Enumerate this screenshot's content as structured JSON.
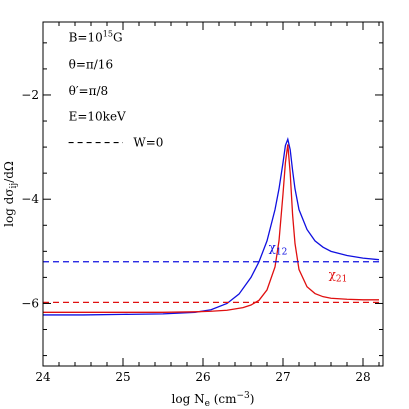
{
  "chart_data": {
    "type": "line",
    "title": "",
    "xlabel": "log N_e (cm^-3)",
    "xlabel_parts": {
      "main": "log N",
      "sub": "e",
      "unit_open": " (cm",
      "unit_sup": "−3",
      "unit_close": ")"
    },
    "ylabel": "log dσ_ij/dΩ",
    "ylabel_parts": {
      "main": "log dσ",
      "sub": "ij",
      "tail": "/dΩ"
    },
    "xlim": [
      24,
      28.25
    ],
    "ylim": [
      -7.2,
      -0.6
    ],
    "x_ticks": [
      24,
      25,
      26,
      27,
      28
    ],
    "x_tick_labels": [
      "24",
      "25",
      "26",
      "27",
      "28"
    ],
    "y_ticks": [
      -6,
      -4,
      -2
    ],
    "y_tick_labels": [
      "−6",
      "−4",
      "−2"
    ],
    "x_minor_step": 0.2,
    "y_minor_step": 0.5,
    "grid": false,
    "annotations": [
      {
        "base": "B=10",
        "sup": "15",
        "tail": "G",
        "x": 24.32,
        "y": -0.97
      },
      {
        "base": "θ=π/16",
        "x": 24.32,
        "y": -1.49
      },
      {
        "base": "θ′=π/8",
        "x": 24.32,
        "y": -2.0
      },
      {
        "base": "E=10keV",
        "x": 24.32,
        "y": -2.49
      }
    ],
    "legend": {
      "placement": "top-left",
      "entries": [
        {
          "text": "W=0",
          "style": "dashed",
          "color": "#000000"
        }
      ]
    },
    "series": [
      {
        "label": "χ12",
        "label_parts": {
          "main": "χ",
          "sub": "12"
        },
        "label_pos": {
          "x": 26.82,
          "y": -5.0
        },
        "color": "#1010e0",
        "style": "solid",
        "x": [
          24.0,
          24.5,
          25.0,
          25.5,
          25.9,
          26.1,
          26.3,
          26.45,
          26.6,
          26.7,
          26.8,
          26.9,
          26.95,
          27.0,
          27.03,
          27.06,
          27.09,
          27.12,
          27.15,
          27.2,
          27.3,
          27.4,
          27.5,
          27.6,
          27.8,
          28.0,
          28.2
        ],
        "y": [
          -6.22,
          -6.22,
          -6.21,
          -6.2,
          -6.17,
          -6.12,
          -6.0,
          -5.82,
          -5.5,
          -5.2,
          -4.8,
          -4.2,
          -3.8,
          -3.3,
          -2.97,
          -2.85,
          -3.05,
          -3.45,
          -3.8,
          -4.2,
          -4.58,
          -4.8,
          -4.92,
          -5.0,
          -5.08,
          -5.13,
          -5.16
        ]
      },
      {
        "label": "χ21",
        "label_parts": {
          "main": "χ",
          "sub": "21"
        },
        "label_pos": {
          "x": 27.57,
          "y": -5.52
        },
        "color": "#e01010",
        "style": "solid",
        "x": [
          24.0,
          24.5,
          25.0,
          25.5,
          25.9,
          26.1,
          26.3,
          26.5,
          26.6,
          26.7,
          26.8,
          26.9,
          26.95,
          27.0,
          27.03,
          27.06,
          27.09,
          27.12,
          27.15,
          27.2,
          27.3,
          27.4,
          27.5,
          27.6,
          27.8,
          28.0,
          28.2
        ],
        "y": [
          -6.17,
          -6.17,
          -6.17,
          -6.17,
          -6.16,
          -6.15,
          -6.13,
          -6.08,
          -6.03,
          -5.94,
          -5.74,
          -5.3,
          -4.8,
          -3.9,
          -3.3,
          -2.95,
          -3.5,
          -4.3,
          -4.85,
          -5.35,
          -5.68,
          -5.81,
          -5.87,
          -5.9,
          -5.92,
          -5.93,
          -5.93
        ]
      },
      {
        "color": "#1010e0",
        "style": "dashed",
        "x": [
          24.0,
          28.25
        ],
        "y": [
          -5.2,
          -5.2
        ]
      },
      {
        "color": "#e01010",
        "style": "dashed",
        "x": [
          24.0,
          28.25
        ],
        "y": [
          -5.98,
          -5.98
        ]
      }
    ]
  }
}
